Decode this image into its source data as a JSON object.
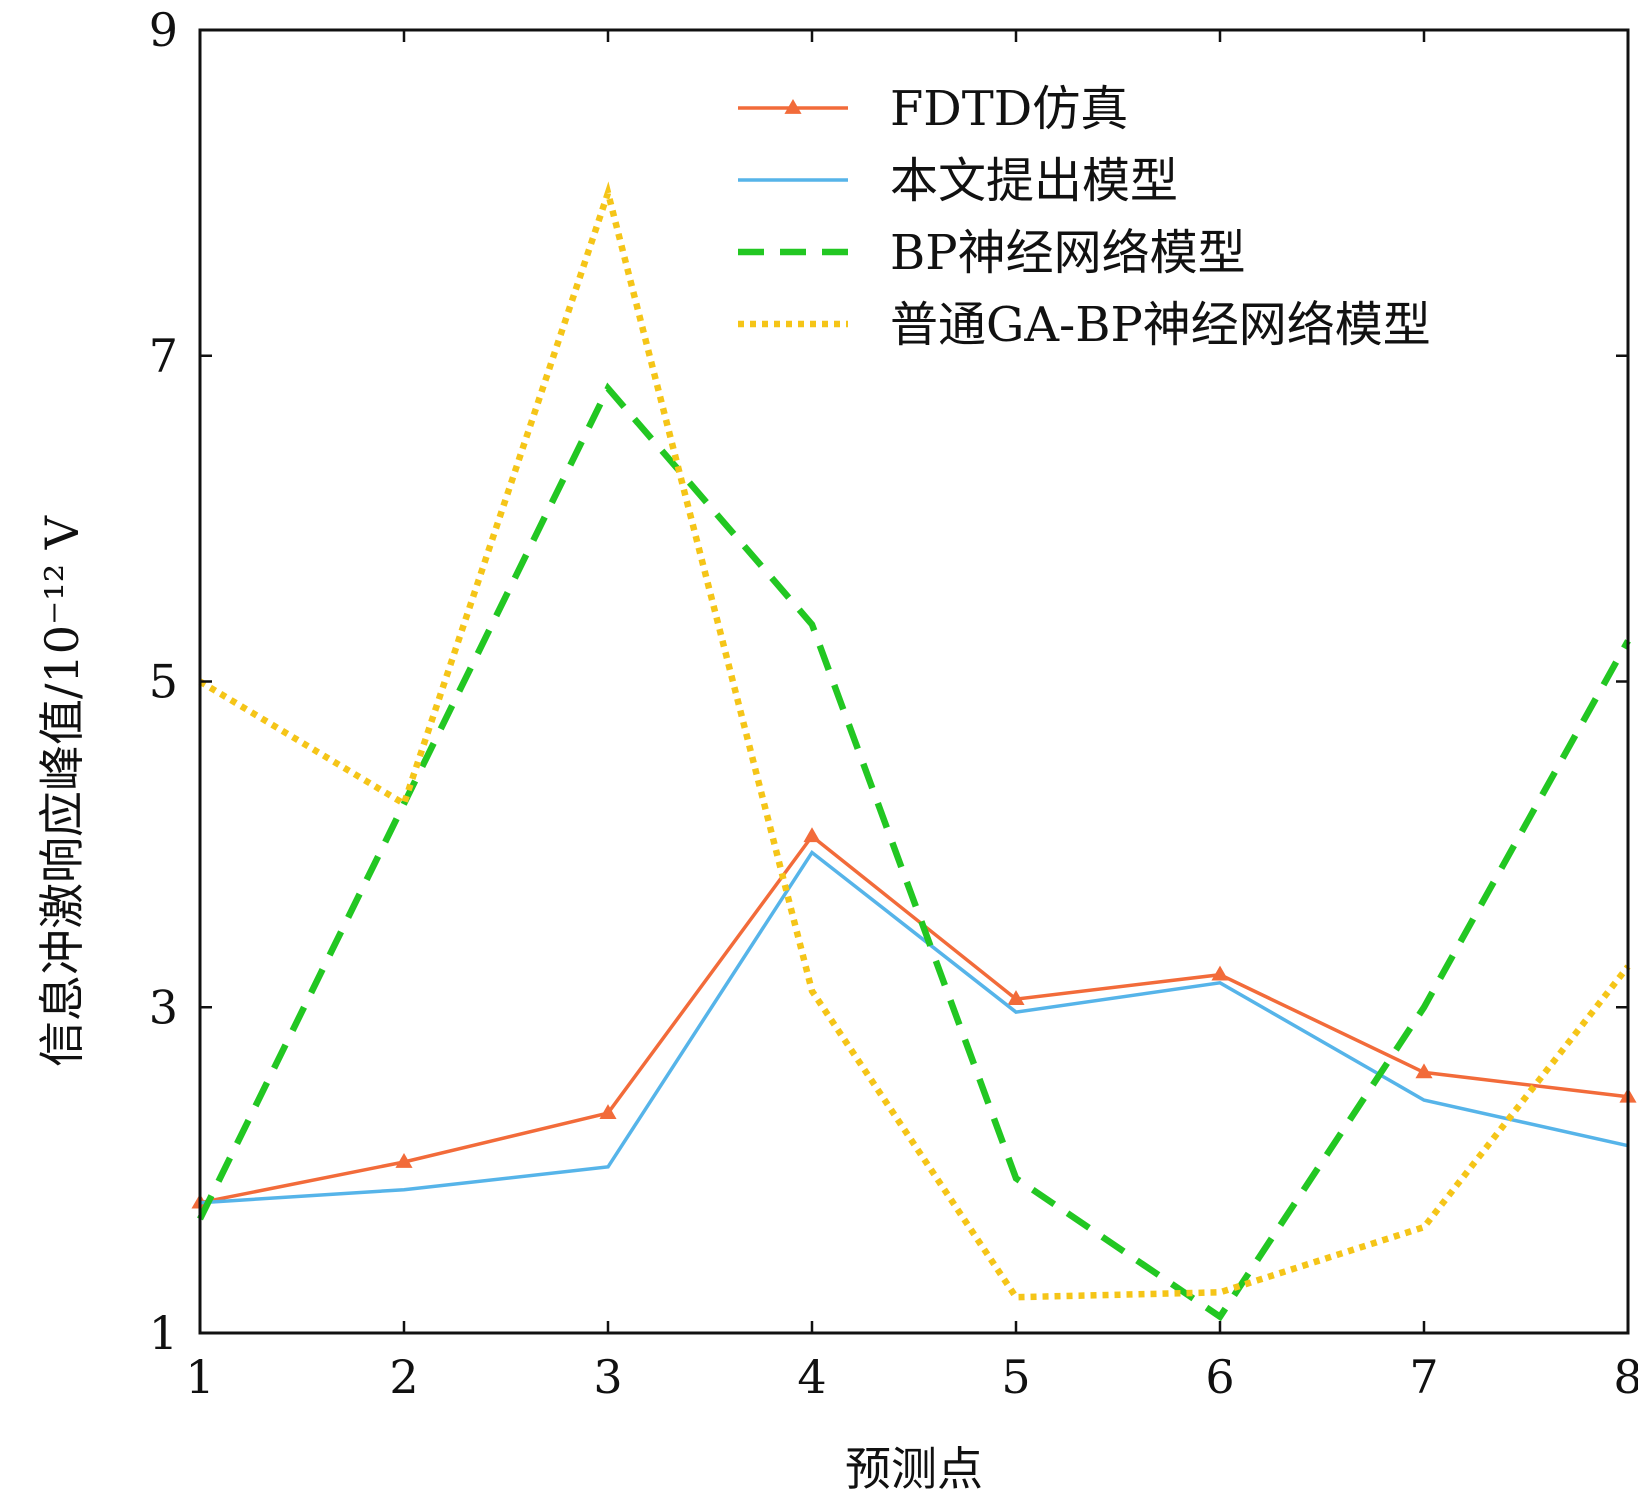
{
  "chart_data": {
    "type": "line",
    "title": "",
    "xlabel": "预测点",
    "ylabel": "信息冲激响应峰值/10⁻¹² V",
    "x": [
      1,
      2,
      3,
      4,
      5,
      6,
      7,
      8
    ],
    "xticks": [
      "1",
      "2",
      "3",
      "4",
      "5",
      "6",
      "7",
      "8"
    ],
    "yticks": [
      "1",
      "3",
      "5",
      "7",
      "9"
    ],
    "xlim": [
      1,
      8
    ],
    "ylim": [
      1,
      9
    ],
    "grid": false,
    "legend_position": "top-right",
    "series": [
      {
        "name": "FDTD仿真",
        "color": "#f26b3a",
        "style": "solid-triangle",
        "values": [
          1.8,
          2.05,
          2.35,
          4.05,
          3.05,
          3.2,
          2.6,
          2.45
        ]
      },
      {
        "name": "本文提出模型",
        "color": "#56b4e9",
        "style": "solid",
        "values": [
          1.8,
          1.88,
          2.02,
          3.95,
          2.97,
          3.15,
          2.43,
          2.15
        ]
      },
      {
        "name": "BP神经网络模型",
        "color": "#22c722",
        "style": "dashed",
        "values": [
          1.7,
          4.25,
          6.8,
          5.35,
          1.95,
          1.1,
          3.0,
          5.25
        ]
      },
      {
        "name": "普通GA-BP神经网络模型",
        "color": "#f5c518",
        "style": "dotted",
        "values": [
          5.0,
          4.25,
          8.0,
          3.1,
          1.22,
          1.25,
          1.65,
          3.25
        ]
      }
    ]
  }
}
